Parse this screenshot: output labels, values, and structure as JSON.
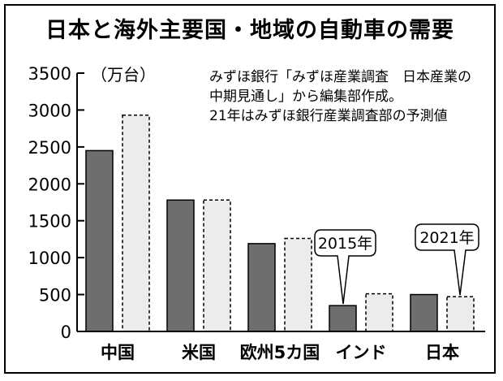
{
  "title": "日本と海外主要国・地域の自動車の需要",
  "colors": {
    "series_2015": "#6e6e6e",
    "series_2021": "#ececec",
    "axis": "#000000"
  },
  "chart_data": {
    "type": "bar",
    "title": "日本と海外主要国・地域の自動車の需要",
    "ylabel": "",
    "unit_label": "（万台）",
    "ylim": [
      0,
      3500
    ],
    "yticks": [
      "0",
      "500",
      "1000",
      "1500",
      "2000",
      "2500",
      "3000",
      "3500"
    ],
    "categories": [
      "中国",
      "米国",
      "欧州5カ国",
      "インド",
      "日本"
    ],
    "series": [
      {
        "name": "2015年",
        "style": "solid",
        "values": [
          2450,
          1780,
          1190,
          350,
          500
        ]
      },
      {
        "name": "2021年",
        "style": "dashed",
        "values": [
          2930,
          1780,
          1260,
          510,
          470
        ]
      }
    ],
    "source_note": [
      "みずほ銀行「みずほ産業調査　日本産業の",
      "中期見通し」から編集部作成。",
      "21年はみずほ銀行産業調査部の予測値"
    ],
    "callouts": [
      "2015年",
      "2021年"
    ]
  }
}
